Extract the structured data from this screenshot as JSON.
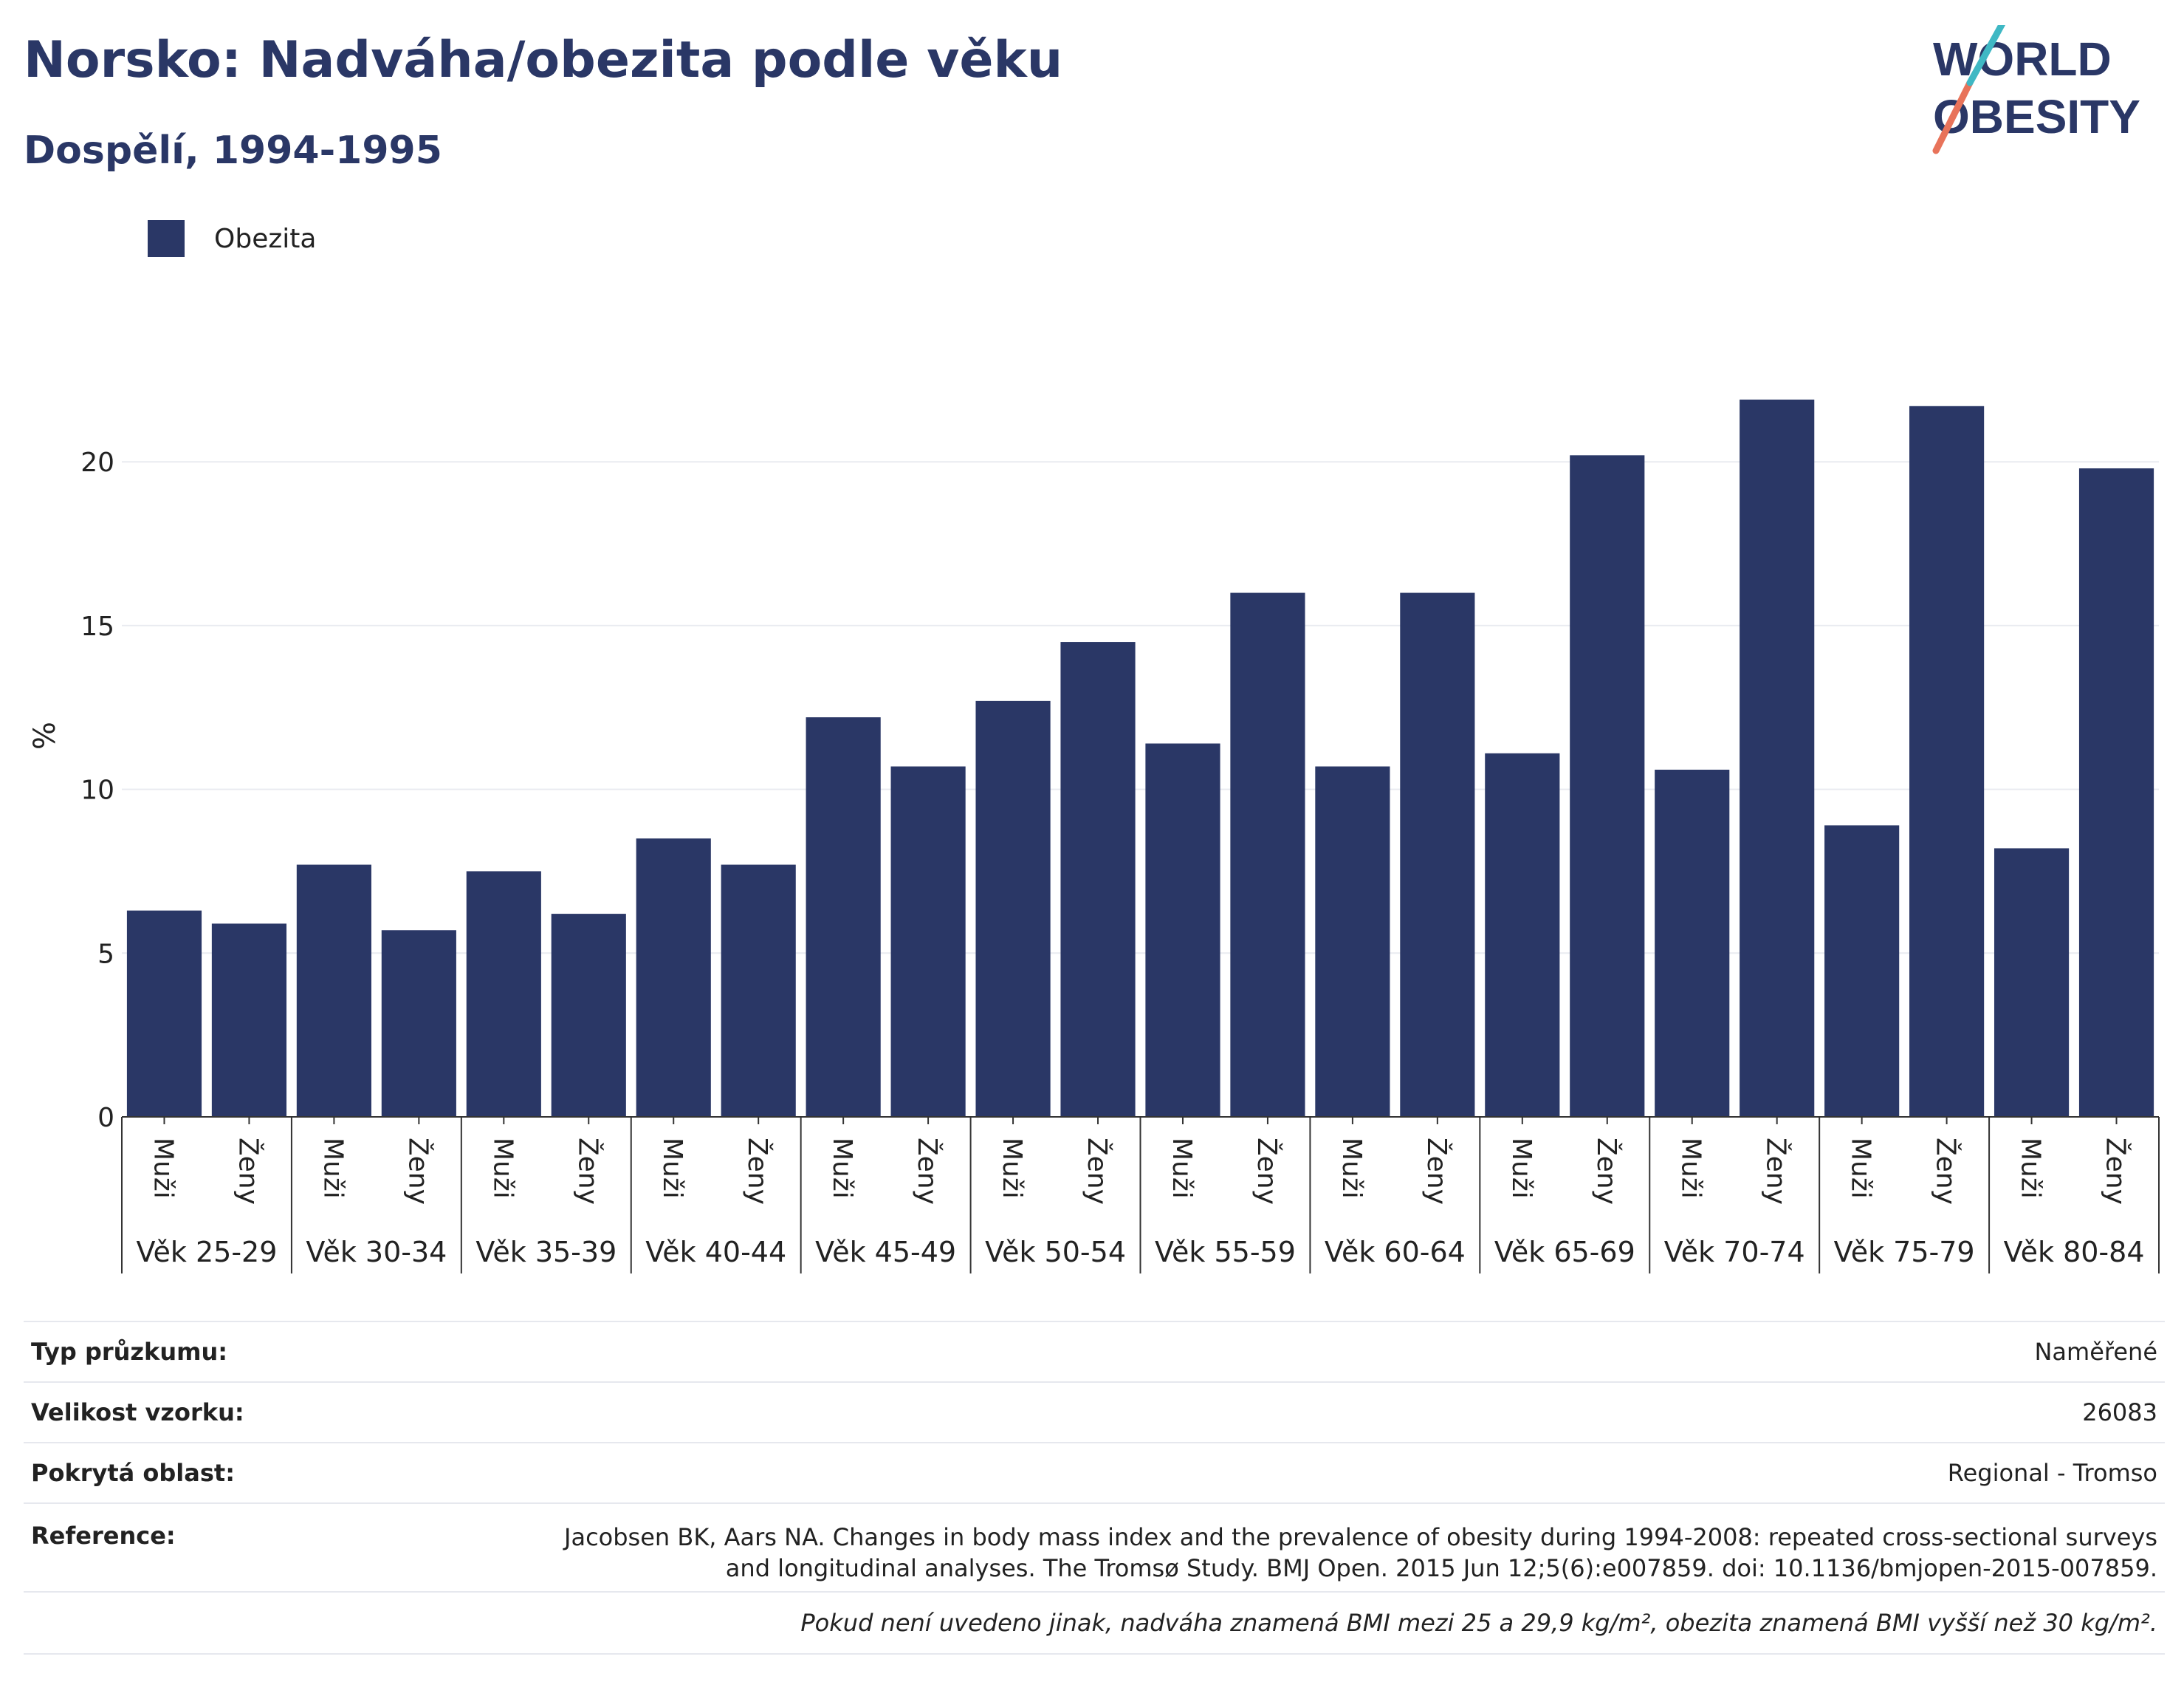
{
  "header": {
    "title": "Norsko: Nadváha/obezita podle věku",
    "subtitle": "Dospělí, 1994-1995"
  },
  "logo": {
    "line1": "WORLD",
    "line2": "OBESITY",
    "accent_colors": [
      "#e8735a",
      "#3fb8c4"
    ],
    "text_color": "#2a3766"
  },
  "legend": [
    {
      "label": "Obezita",
      "color": "#2a3766"
    }
  ],
  "chart_data": {
    "type": "bar",
    "ylabel": "%",
    "ylim": [
      0,
      23.5
    ],
    "yticks": [
      0,
      5,
      10,
      15,
      20
    ],
    "grid": true,
    "legend_position": "top-left",
    "bar_color": "#2a3766",
    "groups": [
      {
        "label": "Věk 25-29",
        "categories": [
          "Muži",
          "Ženy"
        ],
        "values": [
          6.3,
          5.9
        ]
      },
      {
        "label": "Věk 30-34",
        "categories": [
          "Muži",
          "Ženy"
        ],
        "values": [
          7.7,
          5.7
        ]
      },
      {
        "label": "Věk 35-39",
        "categories": [
          "Muži",
          "Ženy"
        ],
        "values": [
          7.5,
          6.2
        ]
      },
      {
        "label": "Věk 40-44",
        "categories": [
          "Muži",
          "Ženy"
        ],
        "values": [
          8.5,
          7.7
        ]
      },
      {
        "label": "Věk 45-49",
        "categories": [
          "Muži",
          "Ženy"
        ],
        "values": [
          12.2,
          10.7
        ]
      },
      {
        "label": "Věk 50-54",
        "categories": [
          "Muži",
          "Ženy"
        ],
        "values": [
          12.7,
          14.5
        ]
      },
      {
        "label": "Věk 55-59",
        "categories": [
          "Muži",
          "Ženy"
        ],
        "values": [
          11.4,
          16.0
        ]
      },
      {
        "label": "Věk 60-64",
        "categories": [
          "Muži",
          "Ženy"
        ],
        "values": [
          10.7,
          16.0
        ]
      },
      {
        "label": "Věk 65-69",
        "categories": [
          "Muži",
          "Ženy"
        ],
        "values": [
          11.1,
          20.2
        ]
      },
      {
        "label": "Věk 70-74",
        "categories": [
          "Muži",
          "Ženy"
        ],
        "values": [
          10.6,
          21.9
        ]
      },
      {
        "label": "Věk 75-79",
        "categories": [
          "Muži",
          "Ženy"
        ],
        "values": [
          8.9,
          21.7
        ]
      },
      {
        "label": "Věk 80-84",
        "categories": [
          "Muži",
          "Ženy"
        ],
        "values": [
          8.2,
          19.8
        ]
      }
    ]
  },
  "info": {
    "survey_type_label": "Typ průzkumu:",
    "survey_type_value": "Naměřené",
    "sample_size_label": "Velikost vzorku:",
    "sample_size_value": "26083",
    "area_label": "Pokrytá oblast:",
    "area_value": "Regional - Tromso",
    "reference_label": "Reference:",
    "reference_line1": "Jacobsen BK, Aars NA. Changes in body mass index and the prevalence of obesity during 1994-2008: repeated cross-sectional surveys",
    "reference_line2": "and longitudinal analyses. The Tromsø Study. BMJ Open. 2015 Jun 12;5(6):e007859. doi: 10.1136/bmjopen-2015-007859.",
    "note": "Pokud není uvedeno jinak, nadváha znamená BMI mezi 25 a 29,9 kg/m², obezita znamená BMI vyšší než 30 kg/m²."
  }
}
